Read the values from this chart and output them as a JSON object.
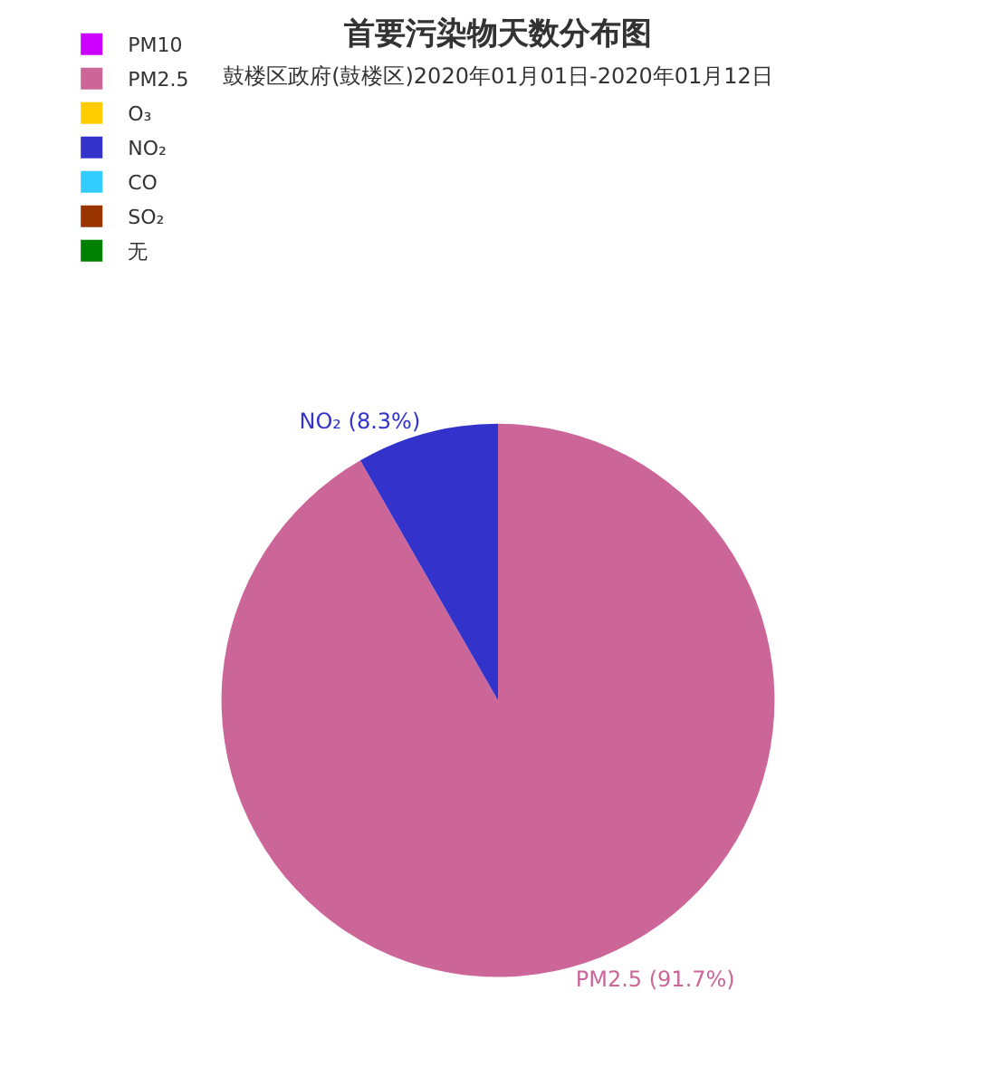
{
  "chart_data": {
    "type": "pie",
    "title": "首要污染物天数分布图",
    "subtitle": "鼓楼区政府(鼓楼区)2020年01月01日-2020年01月12日",
    "categories": [
      "PM10",
      "PM2.5",
      "O₃",
      "NO₂",
      "CO",
      "SO₂",
      "无"
    ],
    "values": [
      0,
      91.7,
      0,
      8.3,
      0,
      0,
      0
    ],
    "colors": [
      "#cc00ff",
      "#cc6699",
      "#ffcc00",
      "#3333cc",
      "#33ccff",
      "#993300",
      "#008000"
    ],
    "value_labels": [
      null,
      "PM2.5 (91.7%)",
      null,
      "NO₂ (8.3%)",
      null,
      null,
      null
    ],
    "legend": "top left"
  }
}
